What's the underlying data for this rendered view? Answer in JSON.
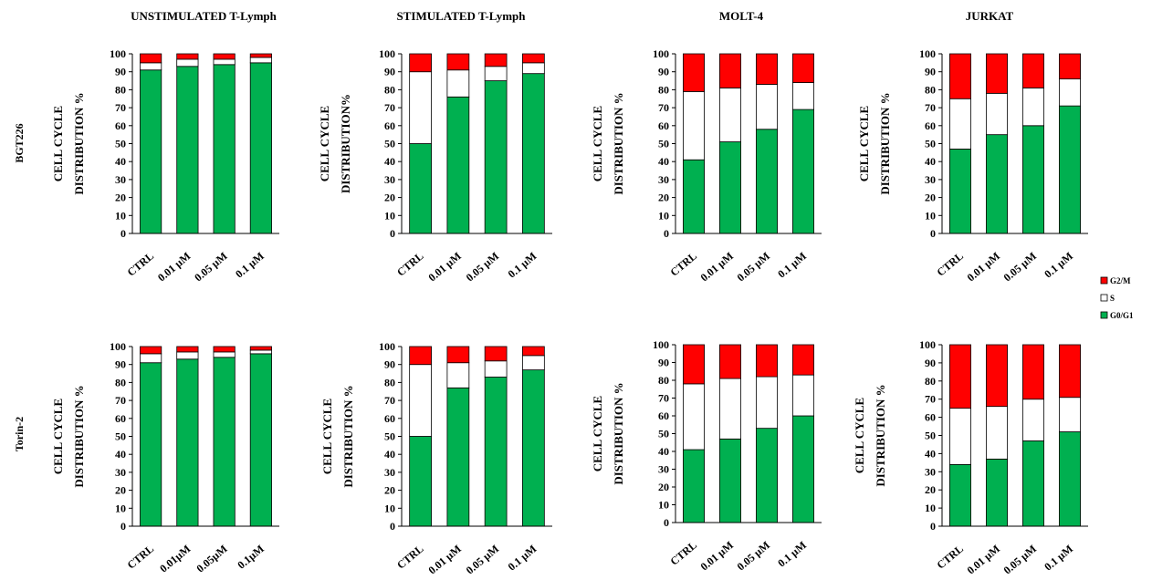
{
  "column_titles": [
    "UNSTIMULATED T-Lymph",
    "STIMULATED T-Lymph",
    "MOLT-4",
    "JURKAT"
  ],
  "row_labels": [
    "BGT226",
    "Torin-2"
  ],
  "legend": [
    {
      "label": "G2/M",
      "color": "#ff0000"
    },
    {
      "label": "S",
      "color": "#ffffff"
    },
    {
      "label": "G0/G1",
      "color": "#00b050"
    }
  ],
  "colors": {
    "G0/G1": "#00b050",
    "S": "#ffffff",
    "G2/M": "#ff0000"
  },
  "chart_data": [
    {
      "type": "bar",
      "stacked": true,
      "row": "BGT226",
      "title": "UNSTIMULATED T-Lymph",
      "ylabel": [
        "CELL  CYCLE",
        "DISTRIBUTION %"
      ],
      "ylim": [
        0,
        100
      ],
      "yticks": [
        0,
        10,
        20,
        30,
        40,
        50,
        60,
        70,
        80,
        90,
        100
      ],
      "categories": [
        "CTRL",
        "0.01 µM",
        "0.05 µM",
        "0.1  µM"
      ],
      "series": [
        {
          "name": "G0/G1",
          "values": [
            91,
            93,
            94,
            95
          ]
        },
        {
          "name": "S",
          "values": [
            4,
            4,
            3,
            3
          ]
        },
        {
          "name": "G2/M",
          "values": [
            5,
            3,
            3,
            2
          ]
        }
      ]
    },
    {
      "type": "bar",
      "stacked": true,
      "row": "BGT226",
      "title": "STIMULATED T-Lymph",
      "ylabel": [
        "CELL  CYCLE",
        "DISTRIBUTION%"
      ],
      "ylim": [
        0,
        100
      ],
      "yticks": [
        0,
        10,
        20,
        30,
        40,
        50,
        60,
        70,
        80,
        90,
        100
      ],
      "categories": [
        "CTRL",
        "0.01 µM",
        "0.05 µM",
        "0.1  µM"
      ],
      "series": [
        {
          "name": "G0/G1",
          "values": [
            50,
            76,
            85,
            89
          ]
        },
        {
          "name": "S",
          "values": [
            40,
            15,
            8,
            6
          ]
        },
        {
          "name": "G2/M",
          "values": [
            10,
            9,
            7,
            5
          ]
        }
      ]
    },
    {
      "type": "bar",
      "stacked": true,
      "row": "BGT226",
      "title": "MOLT-4",
      "ylabel": [
        "CELL  CYCLE",
        "DISTRIBUTION %"
      ],
      "ylim": [
        0,
        100
      ],
      "yticks": [
        0,
        10,
        20,
        30,
        40,
        50,
        60,
        70,
        80,
        90,
        100
      ],
      "categories": [
        "CTRL",
        "0.01 µM",
        "0.05 µM",
        "0.1  µM"
      ],
      "series": [
        {
          "name": "G0/G1",
          "values": [
            41,
            51,
            58,
            69
          ]
        },
        {
          "name": "S",
          "values": [
            38,
            30,
            25,
            15
          ]
        },
        {
          "name": "G2/M",
          "values": [
            21,
            19,
            17,
            16
          ]
        }
      ]
    },
    {
      "type": "bar",
      "stacked": true,
      "row": "BGT226",
      "title": "JURKAT",
      "ylabel": [
        "CELL  CYCLE",
        "DISTRIBUTION %"
      ],
      "ylim": [
        0,
        100
      ],
      "yticks": [
        0,
        10,
        20,
        30,
        40,
        50,
        60,
        70,
        80,
        90,
        100
      ],
      "categories": [
        "CTRL",
        "0.01 µM",
        "0.05 µM",
        "0.1  µM"
      ],
      "series": [
        {
          "name": "G0/G1",
          "values": [
            47,
            55,
            60,
            71
          ]
        },
        {
          "name": "S",
          "values": [
            28,
            23,
            21,
            15
          ]
        },
        {
          "name": "G2/M",
          "values": [
            25,
            22,
            19,
            14
          ]
        }
      ]
    },
    {
      "type": "bar",
      "stacked": true,
      "row": "Torin-2",
      "ylabel": [
        "CELL  CYCLE",
        "DISTRIBUTION %"
      ],
      "ylim": [
        0,
        100
      ],
      "yticks": [
        0,
        10,
        20,
        30,
        40,
        50,
        60,
        70,
        80,
        90,
        100
      ],
      "categories": [
        "CTRL",
        "0.01µM",
        "0.05µM",
        "0.1µM"
      ],
      "series": [
        {
          "name": "G0/G1",
          "values": [
            91,
            93,
            94,
            96
          ]
        },
        {
          "name": "S",
          "values": [
            5,
            4,
            3,
            2
          ]
        },
        {
          "name": "G2/M",
          "values": [
            4,
            3,
            3,
            2
          ]
        }
      ]
    },
    {
      "type": "bar",
      "stacked": true,
      "row": "Torin-2",
      "ylabel": [
        "CELL  CYCLE",
        "DISTRIBUTION %"
      ],
      "ylim": [
        0,
        100
      ],
      "yticks": [
        0,
        10,
        20,
        30,
        40,
        50,
        60,
        70,
        80,
        90,
        100
      ],
      "categories": [
        "CTRL",
        "0.01 µM",
        "0.05 µM",
        "0.1 µM"
      ],
      "series": [
        {
          "name": "G0/G1",
          "values": [
            50,
            77,
            83,
            87
          ]
        },
        {
          "name": "S",
          "values": [
            40,
            14,
            9,
            8
          ]
        },
        {
          "name": "G2/M",
          "values": [
            10,
            9,
            8,
            5
          ]
        }
      ]
    },
    {
      "type": "bar",
      "stacked": true,
      "row": "Torin-2",
      "ylabel": [
        "CELL  CYCLE",
        "DISTRIBUTION %"
      ],
      "ylim": [
        0,
        100
      ],
      "yticks": [
        0,
        10,
        20,
        30,
        40,
        50,
        60,
        70,
        80,
        90,
        100
      ],
      "categories": [
        "CTRL",
        "0.01 µM",
        "0.05 µM",
        "0.1  µM"
      ],
      "series": [
        {
          "name": "G0/G1",
          "values": [
            41,
            47,
            53,
            60
          ]
        },
        {
          "name": "S",
          "values": [
            37,
            34,
            29,
            23
          ]
        },
        {
          "name": "G2/M",
          "values": [
            22,
            19,
            18,
            17
          ]
        }
      ]
    },
    {
      "type": "bar",
      "stacked": true,
      "row": "Torin-2",
      "ylabel": [
        "CELL  CYCLE",
        "DISTRIBUTION %"
      ],
      "ylim": [
        0,
        100
      ],
      "yticks": [
        0,
        10,
        20,
        30,
        40,
        50,
        60,
        70,
        80,
        90,
        100
      ],
      "categories": [
        "CTRL",
        "0.01 µM",
        "0.05 µM",
        "0.1  µM"
      ],
      "series": [
        {
          "name": "G0/G1",
          "values": [
            34,
            37,
            47,
            52
          ]
        },
        {
          "name": "S",
          "values": [
            31,
            29,
            23,
            19
          ]
        },
        {
          "name": "G2/M",
          "values": [
            35,
            34,
            30,
            29
          ]
        }
      ]
    }
  ]
}
